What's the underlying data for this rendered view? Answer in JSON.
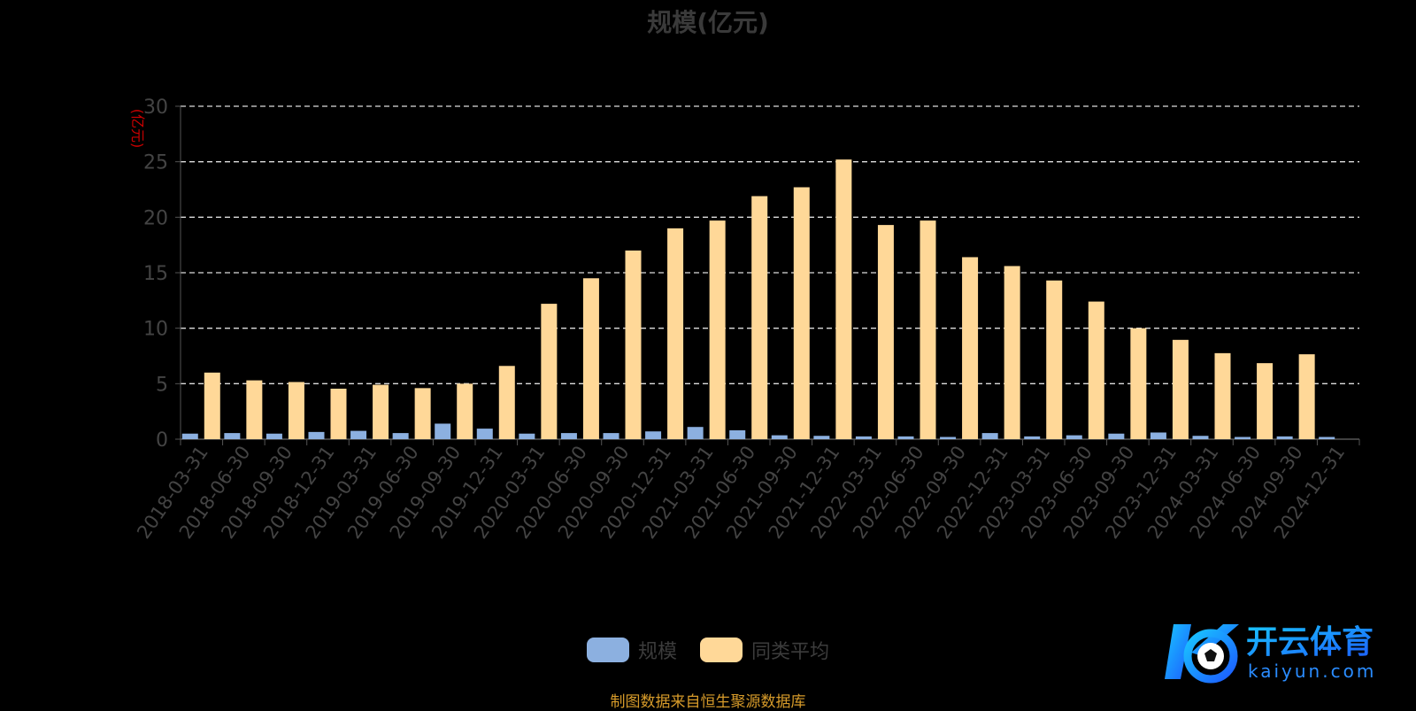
{
  "chart_data": {
    "type": "bar",
    "title": "规模(亿元)",
    "ylabel": "(亿元)",
    "ylim": [
      0,
      30
    ],
    "yticks": [
      0,
      5,
      10,
      15,
      20,
      25,
      30
    ],
    "grid": true,
    "legend_position": "bottom-center",
    "categories": [
      "2018-03-31",
      "2018-06-30",
      "2018-09-30",
      "2018-12-31",
      "2019-03-31",
      "2019-06-30",
      "2019-09-30",
      "2019-12-31",
      "2020-03-31",
      "2020-06-30",
      "2020-09-30",
      "2020-12-31",
      "2021-03-31",
      "2021-06-30",
      "2021-09-30",
      "2021-12-31",
      "2022-03-31",
      "2022-06-30",
      "2022-09-30",
      "2022-12-31",
      "2023-03-31",
      "2023-06-30",
      "2023-09-30",
      "2023-12-31",
      "2024-03-31",
      "2024-06-30",
      "2024-09-30",
      "2024-12-31"
    ],
    "series": [
      {
        "name": "规模",
        "color": "#8cb0e0",
        "values": [
          0.5,
          0.55,
          0.5,
          0.65,
          0.75,
          0.55,
          1.4,
          0.95,
          0.5,
          0.55,
          0.55,
          0.7,
          1.1,
          0.8,
          0.35,
          0.3,
          0.25,
          0.25,
          0.2,
          0.55,
          0.25,
          0.35,
          0.5,
          0.6,
          0.3,
          0.2,
          0.25,
          0.2
        ]
      },
      {
        "name": "同类平均",
        "color": "#ffd898",
        "values": [
          6.0,
          5.3,
          5.15,
          4.55,
          4.9,
          4.6,
          5.0,
          6.6,
          12.2,
          14.5,
          17.0,
          19.0,
          19.7,
          21.9,
          22.7,
          25.2,
          19.3,
          19.7,
          16.4,
          15.6,
          14.3,
          12.4,
          10.0,
          8.95,
          7.75,
          6.85,
          7.65,
          null
        ]
      }
    ]
  },
  "source": "制图数据来自恒生聚源数据库",
  "logo": {
    "brand": "开云体育",
    "domain": "kaiyun.com",
    "icon": "kaiyun-soccer-logo-icon"
  },
  "colors": {
    "axis": "#555555",
    "grid": "#dddddd",
    "tick_text": "#444444",
    "ylabel": "#cc0000"
  }
}
